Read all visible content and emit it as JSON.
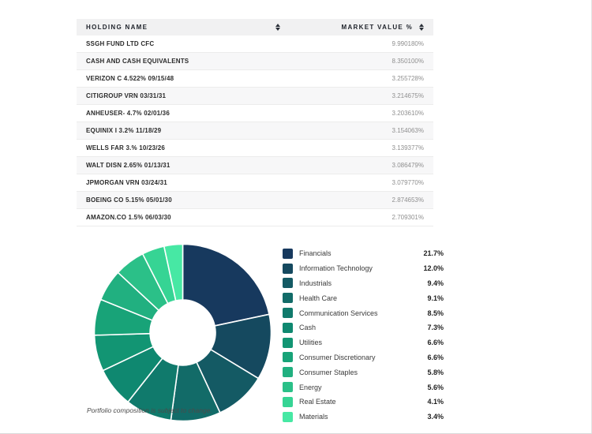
{
  "table": {
    "columns": [
      {
        "label": "HOLDING NAME"
      },
      {
        "label": "MARKET VALUE %"
      }
    ],
    "rows": [
      {
        "name": "SSGH FUND LTD CFC",
        "value": "9.990180%"
      },
      {
        "name": "CASH AND CASH EQUIVALENTS",
        "value": "8.350100%"
      },
      {
        "name": "VERIZON C 4.522% 09/15/48",
        "value": "3.255728%"
      },
      {
        "name": "CITIGROUP VRN 03/31/31",
        "value": "3.214675%"
      },
      {
        "name": "ANHEUSER- 4.7% 02/01/36",
        "value": "3.203610%"
      },
      {
        "name": "EQUINIX I 3.2% 11/18/29",
        "value": "3.154063%"
      },
      {
        "name": "WELLS FAR 3.% 10/23/26",
        "value": "3.139377%"
      },
      {
        "name": "WALT DISN 2.65% 01/13/31",
        "value": "3.086479%"
      },
      {
        "name": "JPMORGAN VRN 03/24/31",
        "value": "3.079770%"
      },
      {
        "name": "BOEING CO 5.15% 05/01/30",
        "value": "2.874653%"
      },
      {
        "name": "AMAZON.CO 1.5% 06/03/30",
        "value": "2.709301%"
      }
    ]
  },
  "chart_data": {
    "type": "pie",
    "subtype": "donut",
    "title": "",
    "categories": [
      "Financials",
      "Information Technology",
      "Industrials",
      "Health Care",
      "Communication Services",
      "Cash",
      "Utilities",
      "Consumer Discretionary",
      "Consumer Staples",
      "Energy",
      "Real Estate",
      "Materials"
    ],
    "values": [
      21.7,
      12.0,
      9.4,
      9.1,
      8.5,
      7.3,
      6.6,
      6.6,
      5.8,
      5.6,
      4.1,
      3.4
    ],
    "value_labels": [
      "21.7%",
      "12.0%",
      "9.4%",
      "9.1%",
      "8.5%",
      "7.3%",
      "6.6%",
      "6.6%",
      "5.8%",
      "5.6%",
      "4.1%",
      "3.4%"
    ],
    "colors": [
      "#17395E",
      "#15495F",
      "#145A64",
      "#126B68",
      "#107A6C",
      "#0F8870",
      "#129573",
      "#18A378",
      "#21B080",
      "#2BC088",
      "#36D494",
      "#47E8A4"
    ],
    "start_angle_deg": 0,
    "direction": "clockwise",
    "donut_hole_ratio": 0.37,
    "segment_gap_color": "#ffffff",
    "legend_position": "right"
  },
  "footnote": "Portfolio composition is subject to change."
}
